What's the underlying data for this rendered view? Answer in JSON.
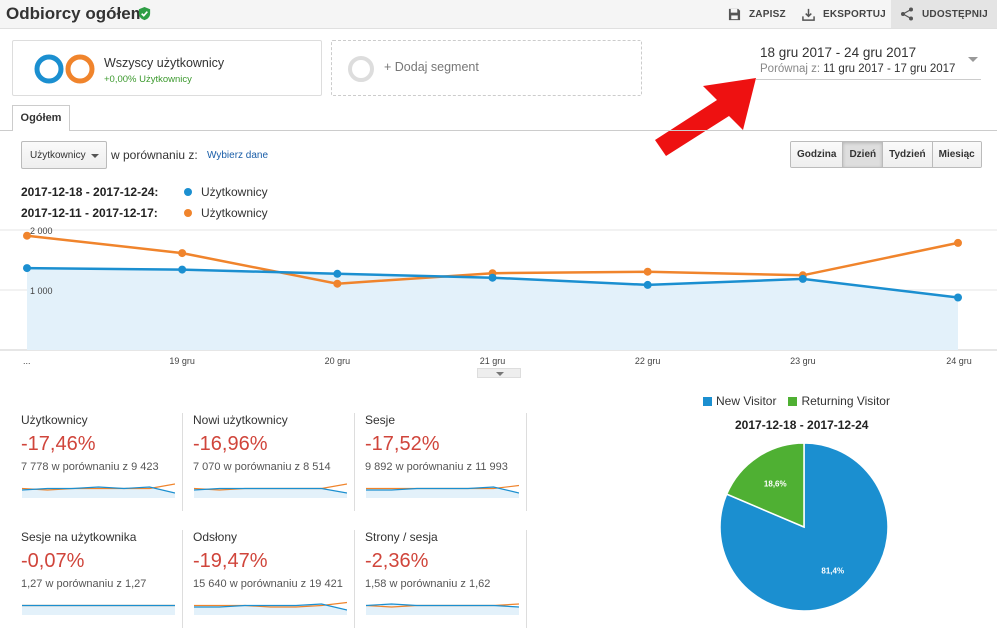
{
  "header": {
    "title": "Odbiorcy ogółem",
    "save": "ZAPISZ",
    "export": "EKSPORTUJ",
    "share": "UDOSTĘPNIJ"
  },
  "segments": {
    "main_title": "Wszyscy użytkownicy",
    "main_sub": "+0,00% Użytkownicy",
    "add_label": "+ Dodaj segment"
  },
  "date": {
    "range": "18 gru 2017 - 24 gru 2017",
    "compare_label": "Porównaj z:",
    "compare_range": "11 gru 2017 - 17 gru 2017"
  },
  "tabs": {
    "overview": "Ogółem"
  },
  "controls": {
    "metric": "Użytkownicy",
    "compare_label": "w porównaniu z:",
    "choose_data": "Wybierz dane",
    "granularity": [
      "Godzina",
      "Dzień",
      "Tydzień",
      "Miesiąc"
    ],
    "active_granularity": "Dzień"
  },
  "legend": [
    {
      "range": "2017-12-18 - 2017-12-24:",
      "name": "Użytkownicy",
      "color": "#1b8fd0"
    },
    {
      "range": "2017-12-11 - 2017-12-17:",
      "name": "Użytkownicy",
      "color": "#f0842c"
    }
  ],
  "chart_data": {
    "type": "line",
    "x": [
      "...",
      "19 gru",
      "20 gru",
      "21 gru",
      "22 gru",
      "23 gru",
      "24 gru"
    ],
    "y_ticks": [
      "1 000",
      "2 000"
    ],
    "ylim": [
      0,
      2000
    ],
    "series": [
      {
        "name": "2017-12-18 - 2017-12-24",
        "color": "#1b8fd0",
        "fill": "#e3f1fa",
        "values": [
          1365,
          1340,
          1270,
          1205,
          1085,
          1185,
          875
        ]
      },
      {
        "name": "2017-12-11 - 2017-12-17",
        "color": "#f0842c",
        "values": [
          1905,
          1615,
          1105,
          1280,
          1305,
          1245,
          1785
        ]
      }
    ]
  },
  "scorecards": [
    {
      "title": "Użytkownicy",
      "value": "-17,46%",
      "compare": "7 778 w porównaniu z 9 423",
      "a": [
        6,
        5,
        5,
        4,
        5,
        4,
        8
      ],
      "b": [
        5,
        6,
        5,
        5,
        5,
        5,
        2
      ]
    },
    {
      "title": "Nowi użytkownicy",
      "value": "-16,96%",
      "compare": "7 070 w porównaniu z 8 514",
      "a": [
        6,
        5,
        5,
        5,
        5,
        5,
        8
      ],
      "b": [
        5,
        6,
        5,
        5,
        5,
        5,
        2
      ]
    },
    {
      "title": "Sesje",
      "value": "-17,52%",
      "compare": "9 892 w porównaniu z 11 993",
      "a": [
        6,
        6,
        5,
        5,
        5,
        4,
        8
      ],
      "b": [
        5,
        5,
        5,
        5,
        5,
        5,
        3
      ]
    },
    {
      "title": "Sesje na użytkownika",
      "value": "-0,07%",
      "compare": "1,27 w porównaniu z 1,27",
      "a": [
        5,
        5,
        5,
        5,
        5,
        5,
        5
      ],
      "b": [
        5,
        5,
        5,
        5,
        5,
        5,
        5
      ]
    },
    {
      "title": "Odsłony",
      "value": "-19,47%",
      "compare": "15 640 w porównaniu z 19 421",
      "a": [
        6,
        6,
        5,
        5,
        5,
        4,
        8
      ],
      "b": [
        5,
        5,
        5,
        6,
        6,
        5,
        3
      ]
    },
    {
      "title": "Strony / sesja",
      "value": "-2,36%",
      "compare": "1,58 w porównaniu z 1,62",
      "a": [
        5,
        4,
        5,
        5,
        5,
        5,
        6
      ],
      "b": [
        5,
        6,
        5,
        5,
        5,
        5,
        4
      ]
    }
  ],
  "pie": {
    "legend": [
      {
        "name": "New Visitor",
        "color": "#1b8fd0"
      },
      {
        "name": "Returning Visitor",
        "color": "#4fb033"
      }
    ],
    "title": "2017-12-18 - 2017-12-24",
    "slices": [
      {
        "name": "New Visitor",
        "value": 81.4,
        "label": "81,4%",
        "color": "#1b8fd0"
      },
      {
        "name": "Returning Visitor",
        "value": 18.6,
        "label": "18,6%",
        "color": "#4fb033"
      }
    ]
  }
}
